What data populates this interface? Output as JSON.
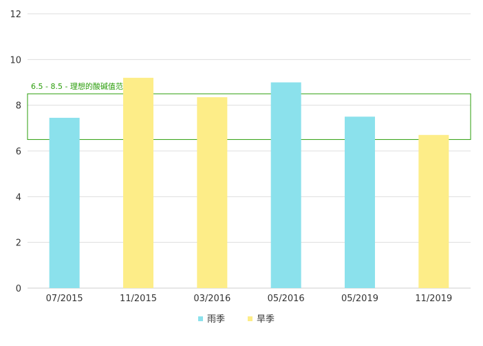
{
  "chart_data": {
    "type": "bar",
    "categories": [
      "07/2015",
      "11/2015",
      "03/2016",
      "05/2016",
      "05/2019",
      "11/2019"
    ],
    "values": [
      7.45,
      9.2,
      8.35,
      9.0,
      7.5,
      6.7
    ],
    "season": [
      "雨季",
      "旱季",
      "旱季",
      "雨季",
      "雨季",
      "旱季"
    ],
    "ylim": [
      0,
      12
    ],
    "yticks": [
      0,
      2,
      4,
      6,
      8,
      10,
      12
    ],
    "grid": true,
    "legend_position": "bottom",
    "legend": [
      {
        "name": "雨季",
        "color": "#8be1ec"
      },
      {
        "name": "旱季",
        "color": "#fded88"
      }
    ],
    "reference_band": {
      "from": 6.5,
      "to": 8.5,
      "label": "6.5 - 8.5 - 理想的酸碱值范围*",
      "color": "#2a9d0a"
    },
    "title": "",
    "xlabel": "",
    "ylabel": ""
  }
}
